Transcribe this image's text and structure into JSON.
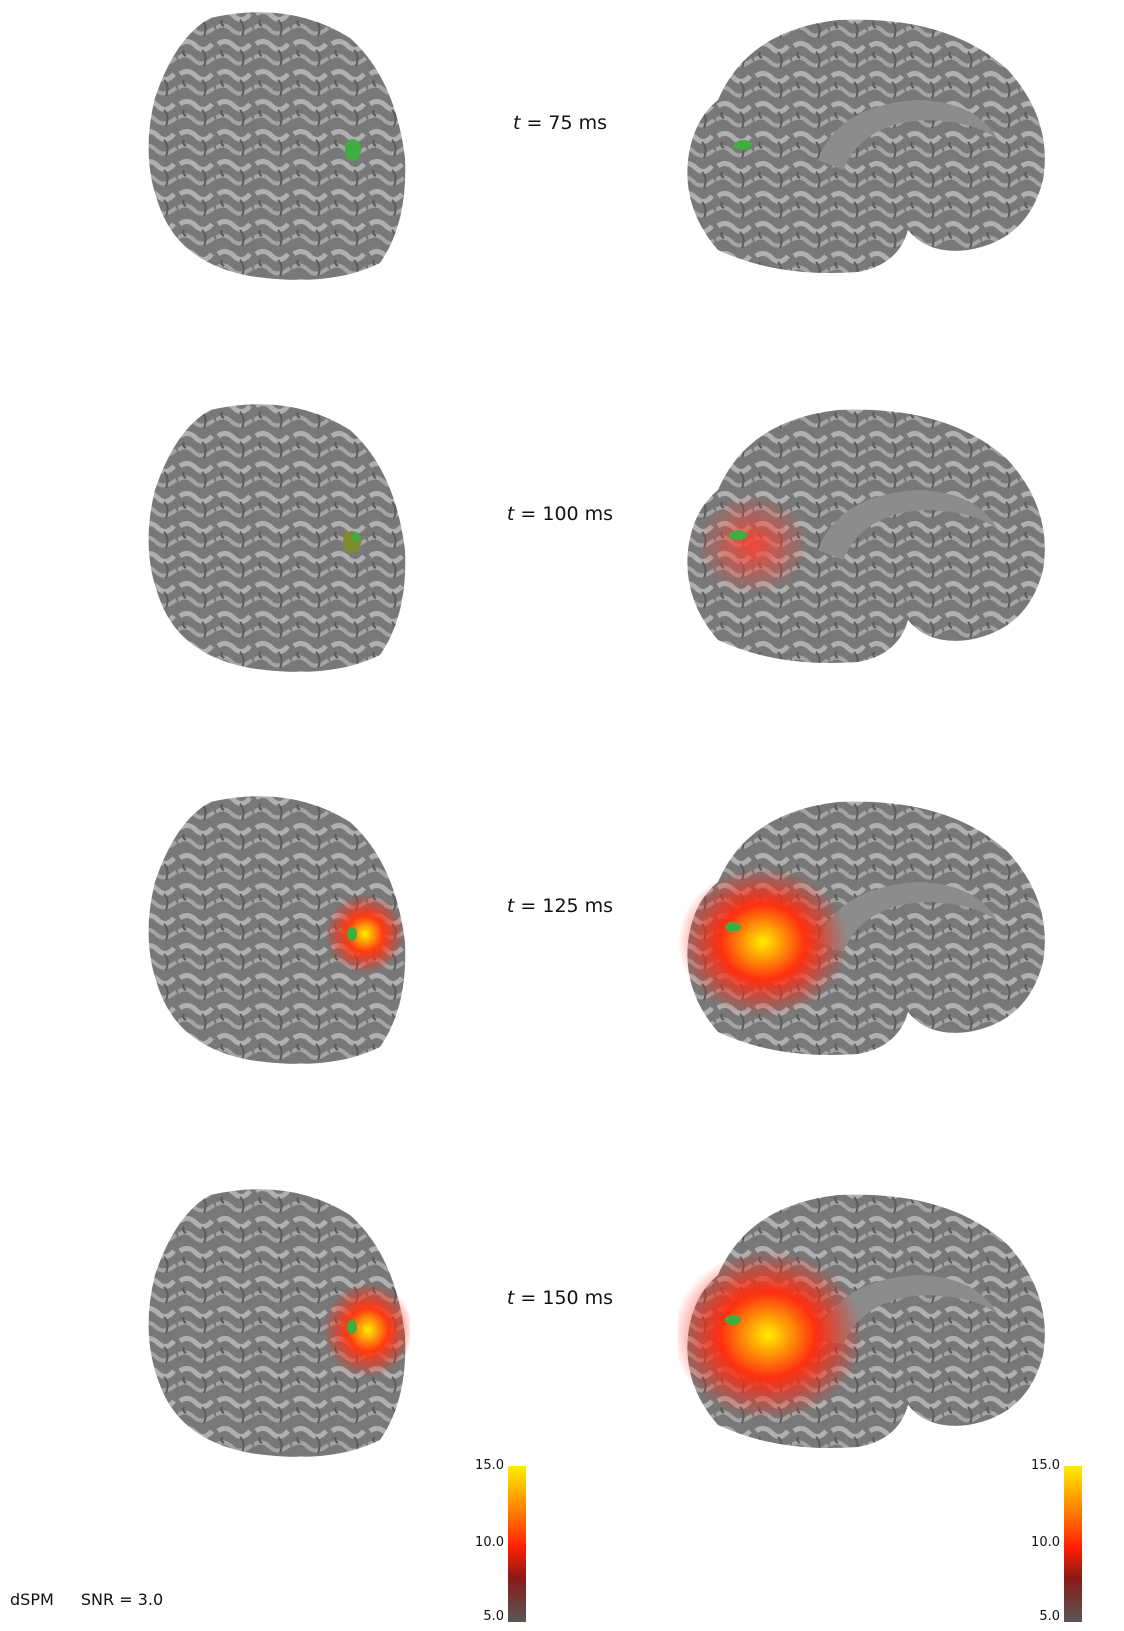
{
  "rows": [
    {
      "t_var": "t",
      "label": " = 75 ms"
    },
    {
      "t_var": "t",
      "label": " = 100 ms"
    },
    {
      "t_var": "t",
      "label": " = 125 ms"
    },
    {
      "t_var": "t",
      "label": " = 150 ms"
    }
  ],
  "colorbars": [
    {
      "max": "15.0",
      "mid": "10.0",
      "min": "5.0"
    },
    {
      "max": "15.0",
      "mid": "10.0",
      "min": "5.0"
    }
  ],
  "footer": {
    "method": "dSPM",
    "snr": "SNR = 3.0"
  },
  "colors": {
    "cortex": "#7a7a7a",
    "gyri": "#a8a8a8",
    "focus": "#3fae3f",
    "act_low": "#ee2a1a",
    "act_high": "#ffe600"
  }
}
